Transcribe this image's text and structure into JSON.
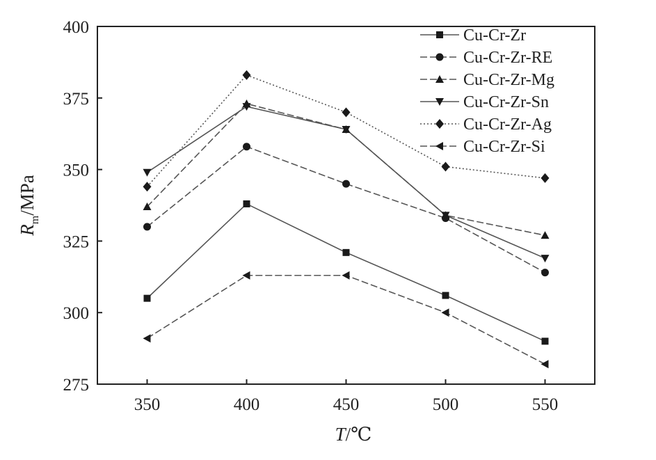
{
  "chart_data": {
    "type": "line",
    "x": [
      350,
      400,
      450,
      500,
      550
    ],
    "xlim": [
      325,
      575
    ],
    "ylim": [
      275,
      400
    ],
    "xticks": [
      "350",
      "400",
      "450",
      "500",
      "550"
    ],
    "yticks": [
      "275",
      "300",
      "325",
      "350",
      "375",
      "400"
    ],
    "xlabel": {
      "var": "T",
      "unit": "/℃"
    },
    "ylabel": {
      "var": "R",
      "sub": "m",
      "unit": "/MPa"
    },
    "legend_position": "top-right",
    "grid": false,
    "series": [
      {
        "name": "Cu-Cr-Zr",
        "marker": "square",
        "dash": "solid",
        "values": [
          305,
          338,
          321,
          306,
          290
        ]
      },
      {
        "name": "Cu-Cr-Zr-RE",
        "marker": "circle",
        "dash": "dashed",
        "values": [
          330,
          358,
          345,
          333,
          314
        ]
      },
      {
        "name": "Cu-Cr-Zr-Mg",
        "marker": "triangle-up",
        "dash": "dashed",
        "values": [
          337,
          373,
          364,
          334,
          327
        ]
      },
      {
        "name": "Cu-Cr-Zr-Sn",
        "marker": "triangle-down",
        "dash": "solid",
        "values": [
          349,
          372,
          364,
          334,
          319
        ]
      },
      {
        "name": "Cu-Cr-Zr-Ag",
        "marker": "diamond",
        "dash": "dotted",
        "values": [
          344,
          383,
          370,
          351,
          347
        ]
      },
      {
        "name": "Cu-Cr-Zr-Si",
        "marker": "triangle-left",
        "dash": "dashed",
        "values": [
          291,
          313,
          313,
          300,
          282
        ]
      }
    ]
  }
}
